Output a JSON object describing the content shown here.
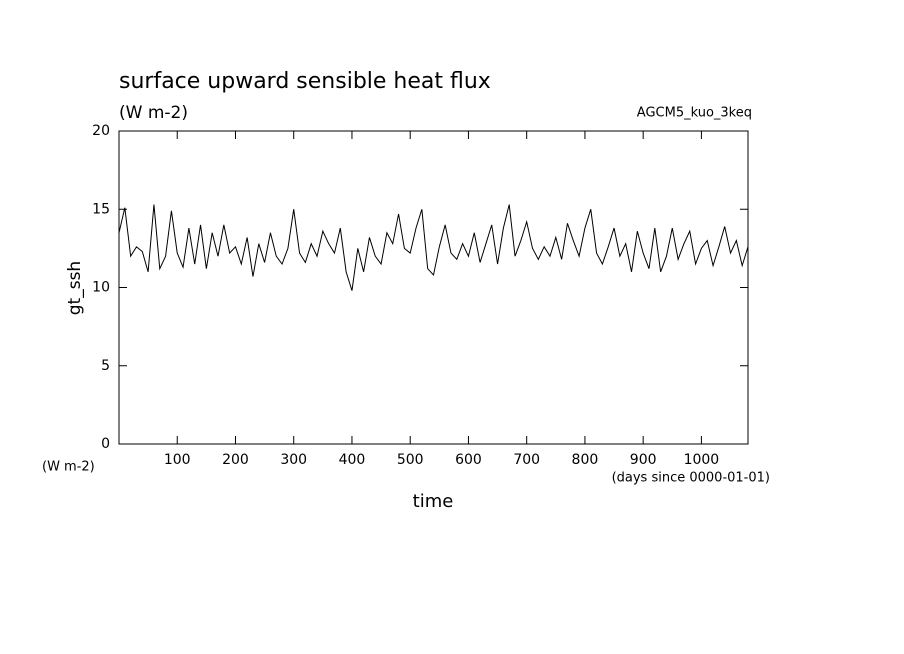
{
  "chart_data": {
    "type": "line",
    "title": "surface upward sensible heat flux",
    "subtitle": "(W m-2)",
    "annotation": "AGCM5_kuo_3keq",
    "y_label": "gt_ssh",
    "y_unit": "(W m-2)",
    "x_label": "time",
    "x_unit": "(days since 0000-01-01)",
    "xlim": [
      0,
      1080
    ],
    "ylim": [
      0,
      20
    ],
    "xticks": [
      100,
      200,
      300,
      400,
      500,
      600,
      700,
      800,
      900,
      1000
    ],
    "yticks": [
      0,
      5,
      10,
      15,
      20
    ],
    "series": [
      {
        "name": "gt_ssh",
        "color": "#000000",
        "x": [
          0,
          10,
          20,
          30,
          40,
          50,
          60,
          70,
          80,
          90,
          100,
          110,
          120,
          130,
          140,
          150,
          160,
          170,
          180,
          190,
          200,
          210,
          220,
          230,
          240,
          250,
          260,
          270,
          280,
          290,
          300,
          310,
          320,
          330,
          340,
          350,
          360,
          370,
          380,
          390,
          400,
          410,
          420,
          430,
          440,
          450,
          460,
          470,
          480,
          490,
          500,
          510,
          520,
          530,
          540,
          550,
          560,
          570,
          580,
          590,
          600,
          610,
          620,
          630,
          640,
          650,
          660,
          670,
          680,
          690,
          700,
          710,
          720,
          730,
          740,
          750,
          760,
          770,
          780,
          790,
          800,
          810,
          820,
          830,
          840,
          850,
          860,
          870,
          880,
          890,
          900,
          910,
          920,
          930,
          940,
          950,
          960,
          970,
          980,
          990,
          1000,
          1010,
          1020,
          1030,
          1040,
          1050,
          1060,
          1070,
          1080
        ],
        "values": [
          13.5,
          15.1,
          12.0,
          12.6,
          12.3,
          11.0,
          15.3,
          11.2,
          12.0,
          14.9,
          12.2,
          11.3,
          13.8,
          11.5,
          14.0,
          11.2,
          13.5,
          12.0,
          14.0,
          12.2,
          12.6,
          11.5,
          13.2,
          10.7,
          12.8,
          11.6,
          13.5,
          12.0,
          11.5,
          12.5,
          15.0,
          12.2,
          11.6,
          12.8,
          12.0,
          13.6,
          12.8,
          12.2,
          13.8,
          11.0,
          9.8,
          12.5,
          11.0,
          13.2,
          12.0,
          11.5,
          13.5,
          12.8,
          14.7,
          12.5,
          12.2,
          13.8,
          15.0,
          11.2,
          10.8,
          12.6,
          14.0,
          12.2,
          11.8,
          12.8,
          12.0,
          13.5,
          11.6,
          12.8,
          14.0,
          11.5,
          13.8,
          15.3,
          12.0,
          13.0,
          14.2,
          12.5,
          11.8,
          12.6,
          12.0,
          13.2,
          11.8,
          14.1,
          13.0,
          12.0,
          13.8,
          15.0,
          12.2,
          11.5,
          12.6,
          13.8,
          12.0,
          12.8,
          11.0,
          13.6,
          12.2,
          11.2,
          13.8,
          11.0,
          12.0,
          13.8,
          11.8,
          12.8,
          13.6,
          11.5,
          12.5,
          13.0,
          11.4,
          12.6,
          13.9,
          12.2,
          13.0,
          11.4,
          12.6
        ]
      }
    ]
  }
}
